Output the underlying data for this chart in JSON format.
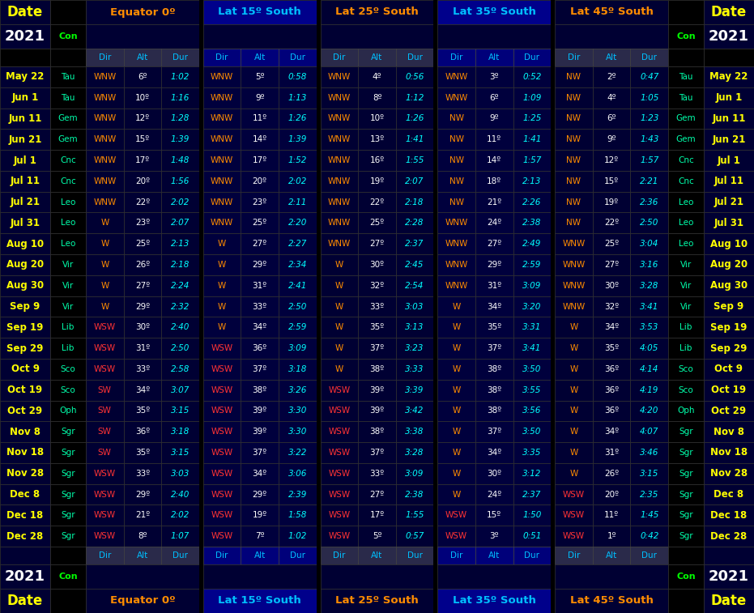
{
  "dates": [
    "May 22",
    "Jun 1",
    "Jun 11",
    "Jun 21",
    "Jul 1",
    "Jul 11",
    "Jul 21",
    "Jul 31",
    "Aug 10",
    "Aug 20",
    "Aug 30",
    "Sep 9",
    "Sep 19",
    "Sep 29",
    "Oct 9",
    "Oct 19",
    "Oct 29",
    "Nov 8",
    "Nov 18",
    "Nov 28",
    "Dec 8",
    "Dec 18",
    "Dec 28"
  ],
  "cons": [
    "Tau",
    "Tau",
    "Gem",
    "Gem",
    "Cnc",
    "Cnc",
    "Leo",
    "Leo",
    "Leo",
    "Vir",
    "Vir",
    "Vir",
    "Lib",
    "Lib",
    "Sco",
    "Sco",
    "Oph",
    "Sgr",
    "Sgr",
    "Sgr",
    "Sgr",
    "Sgr",
    "Sgr"
  ],
  "eq0": [
    [
      "WNW",
      "6º",
      "1:02"
    ],
    [
      "WNW",
      "10º",
      "1:16"
    ],
    [
      "WNW",
      "12º",
      "1:28"
    ],
    [
      "WNW",
      "15º",
      "1:39"
    ],
    [
      "WNW",
      "17º",
      "1:48"
    ],
    [
      "WNW",
      "20º",
      "1:56"
    ],
    [
      "WNW",
      "22º",
      "2:02"
    ],
    [
      "W",
      "23º",
      "2:07"
    ],
    [
      "W",
      "25º",
      "2:13"
    ],
    [
      "W",
      "26º",
      "2:18"
    ],
    [
      "W",
      "27º",
      "2:24"
    ],
    [
      "W",
      "29º",
      "2:32"
    ],
    [
      "WSW",
      "30º",
      "2:40"
    ],
    [
      "WSW",
      "31º",
      "2:50"
    ],
    [
      "WSW",
      "33º",
      "2:58"
    ],
    [
      "SW",
      "34º",
      "3:07"
    ],
    [
      "SW",
      "35º",
      "3:15"
    ],
    [
      "SW",
      "36º",
      "3:18"
    ],
    [
      "SW",
      "35º",
      "3:15"
    ],
    [
      "WSW",
      "33º",
      "3:03"
    ],
    [
      "WSW",
      "29º",
      "2:40"
    ],
    [
      "WSW",
      "21º",
      "2:02"
    ],
    [
      "WSW",
      "8º",
      "1:07"
    ]
  ],
  "lat15": [
    [
      "WNW",
      "5º",
      "0:58"
    ],
    [
      "WNW",
      "9º",
      "1:13"
    ],
    [
      "WNW",
      "11º",
      "1:26"
    ],
    [
      "WNW",
      "14º",
      "1:39"
    ],
    [
      "WNW",
      "17º",
      "1:52"
    ],
    [
      "WNW",
      "20º",
      "2:02"
    ],
    [
      "WNW",
      "23º",
      "2:11"
    ],
    [
      "WNW",
      "25º",
      "2:20"
    ],
    [
      "W",
      "27º",
      "2:27"
    ],
    [
      "W",
      "29º",
      "2:34"
    ],
    [
      "W",
      "31º",
      "2:41"
    ],
    [
      "W",
      "33º",
      "2:50"
    ],
    [
      "W",
      "34º",
      "2:59"
    ],
    [
      "WSW",
      "36º",
      "3:09"
    ],
    [
      "WSW",
      "37º",
      "3:18"
    ],
    [
      "WSW",
      "38º",
      "3:26"
    ],
    [
      "WSW",
      "39º",
      "3:30"
    ],
    [
      "WSW",
      "39º",
      "3:30"
    ],
    [
      "WSW",
      "37º",
      "3:22"
    ],
    [
      "WSW",
      "34º",
      "3:06"
    ],
    [
      "WSW",
      "29º",
      "2:39"
    ],
    [
      "WSW",
      "19º",
      "1:58"
    ],
    [
      "WSW",
      "7º",
      "1:02"
    ]
  ],
  "lat25": [
    [
      "WNW",
      "4º",
      "0:56"
    ],
    [
      "WNW",
      "8º",
      "1:12"
    ],
    [
      "WNW",
      "10º",
      "1:26"
    ],
    [
      "WNW",
      "13º",
      "1:41"
    ],
    [
      "WNW",
      "16º",
      "1:55"
    ],
    [
      "WNW",
      "19º",
      "2:07"
    ],
    [
      "WNW",
      "22º",
      "2:18"
    ],
    [
      "WNW",
      "25º",
      "2:28"
    ],
    [
      "WNW",
      "27º",
      "2:37"
    ],
    [
      "W",
      "30º",
      "2:45"
    ],
    [
      "W",
      "32º",
      "2:54"
    ],
    [
      "W",
      "33º",
      "3:03"
    ],
    [
      "W",
      "35º",
      "3:13"
    ],
    [
      "W",
      "37º",
      "3:23"
    ],
    [
      "W",
      "38º",
      "3:33"
    ],
    [
      "WSW",
      "39º",
      "3:39"
    ],
    [
      "WSW",
      "39º",
      "3:42"
    ],
    [
      "WSW",
      "38º",
      "3:38"
    ],
    [
      "WSW",
      "37º",
      "3:28"
    ],
    [
      "WSW",
      "33º",
      "3:09"
    ],
    [
      "WSW",
      "27º",
      "2:38"
    ],
    [
      "WSW",
      "17º",
      "1:55"
    ],
    [
      "WSW",
      "5º",
      "0:57"
    ]
  ],
  "lat35": [
    [
      "WNW",
      "3º",
      "0:52"
    ],
    [
      "WNW",
      "6º",
      "1:09"
    ],
    [
      "NW",
      "9º",
      "1:25"
    ],
    [
      "NW",
      "11º",
      "1:41"
    ],
    [
      "NW",
      "14º",
      "1:57"
    ],
    [
      "NW",
      "18º",
      "2:13"
    ],
    [
      "NW",
      "21º",
      "2:26"
    ],
    [
      "WNW",
      "24º",
      "2:38"
    ],
    [
      "WNW",
      "27º",
      "2:49"
    ],
    [
      "WNW",
      "29º",
      "2:59"
    ],
    [
      "WNW",
      "31º",
      "3:09"
    ],
    [
      "W",
      "34º",
      "3:20"
    ],
    [
      "W",
      "35º",
      "3:31"
    ],
    [
      "W",
      "37º",
      "3:41"
    ],
    [
      "W",
      "38º",
      "3:50"
    ],
    [
      "W",
      "38º",
      "3:55"
    ],
    [
      "W",
      "38º",
      "3:56"
    ],
    [
      "W",
      "37º",
      "3:50"
    ],
    [
      "W",
      "34º",
      "3:35"
    ],
    [
      "W",
      "30º",
      "3:12"
    ],
    [
      "W",
      "24º",
      "2:37"
    ],
    [
      "WSW",
      "15º",
      "1:50"
    ],
    [
      "WSW",
      "3º",
      "0:51"
    ]
  ],
  "lat45": [
    [
      "NW",
      "2º",
      "0:47"
    ],
    [
      "NW",
      "4º",
      "1:05"
    ],
    [
      "NW",
      "6º",
      "1:23"
    ],
    [
      "NW",
      "9º",
      "1:43"
    ],
    [
      "NW",
      "12º",
      "1:57"
    ],
    [
      "NW",
      "15º",
      "2:21"
    ],
    [
      "NW",
      "19º",
      "2:36"
    ],
    [
      "NW",
      "22º",
      "2:50"
    ],
    [
      "WNW",
      "25º",
      "3:04"
    ],
    [
      "WNW",
      "27º",
      "3:16"
    ],
    [
      "WNW",
      "30º",
      "3:28"
    ],
    [
      "WNW",
      "32º",
      "3:41"
    ],
    [
      "W",
      "34º",
      "3:53"
    ],
    [
      "W",
      "35º",
      "4:05"
    ],
    [
      "W",
      "36º",
      "4:14"
    ],
    [
      "W",
      "36º",
      "4:19"
    ],
    [
      "W",
      "36º",
      "4:20"
    ],
    [
      "W",
      "34º",
      "4:07"
    ],
    [
      "W",
      "31º",
      "3:46"
    ],
    [
      "W",
      "26º",
      "3:15"
    ],
    [
      "WSW",
      "20º",
      "2:35"
    ],
    [
      "WSW",
      "11º",
      "1:45"
    ],
    [
      "WSW",
      "1º",
      "0:42"
    ]
  ],
  "date_text_color": "#ffff00",
  "con_text_color": "#00ffaa",
  "con_header_color": "#00ff00",
  "year_text_color": "#ffffff",
  "dir_color_wnw_nw_w": "#ff8c00",
  "dir_color_wsw_sw": "#ff3333",
  "alt_color": "#ffffff",
  "dur_color": "#00ffff",
  "header_eq_color": "#ff8c00",
  "header_lat15_color": "#00bfff",
  "header_lat25_color": "#ff8c00",
  "header_lat35_color": "#00bfff",
  "header_lat45_color": "#ff8c00",
  "subhdr_color": "#00bfff",
  "bg_black": "#000000",
  "bg_darkblue": "#000033",
  "bg_navyblue": "#00008b",
  "bg_subhdr_gray": "#2a2a4a",
  "bg_subhdr_navy": "#00007a"
}
